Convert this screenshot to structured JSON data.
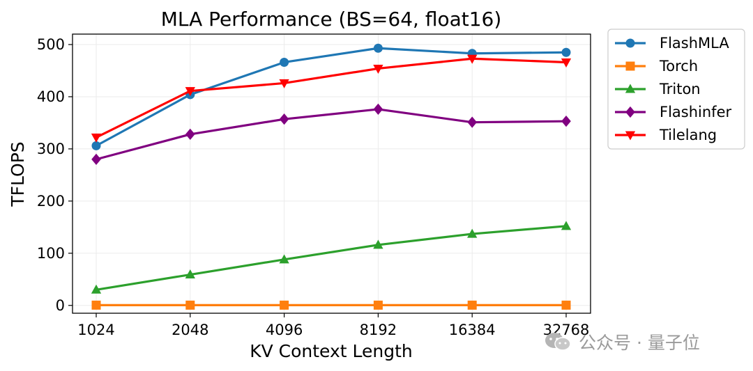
{
  "chart_data": {
    "type": "line",
    "title": "MLA Performance (BS=64, float16)",
    "xlabel": "KV Context Length",
    "ylabel": "TFLOPS",
    "categories": [
      "1024",
      "2048",
      "4096",
      "8192",
      "16384",
      "32768"
    ],
    "ylim": [
      -15,
      520
    ],
    "yticks": [
      0,
      100,
      200,
      300,
      400,
      500
    ],
    "grid": true,
    "legend_position": "outside-right-top",
    "series": [
      {
        "name": "FlashMLA",
        "color": "#1f77b4",
        "marker": "circle",
        "values": [
          306,
          404,
          466,
          493,
          483,
          485
        ]
      },
      {
        "name": "Torch",
        "color": "#ff7f0e",
        "marker": "square",
        "values": [
          0.5,
          0.5,
          0.5,
          0.5,
          0.5,
          0.5
        ]
      },
      {
        "name": "Triton",
        "color": "#2ca02c",
        "marker": "triangle-up",
        "values": [
          30,
          59,
          88,
          116,
          137,
          152
        ]
      },
      {
        "name": "Flashinfer",
        "color": "#800080",
        "marker": "diamond",
        "values": [
          280,
          328,
          357,
          376,
          351,
          353
        ]
      },
      {
        "name": "Tilelang",
        "color": "#ff0000",
        "marker": "triangle-down",
        "values": [
          322,
          411,
          426,
          454,
          473,
          466
        ]
      }
    ]
  },
  "watermark": {
    "text": "公众号 · 量子位",
    "icon": "wechat-icon"
  }
}
